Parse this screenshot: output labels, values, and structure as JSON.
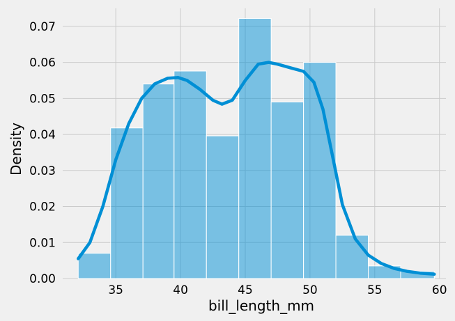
{
  "chart_data": {
    "type": "bar",
    "title": "",
    "xlabel": "bill_length_mm",
    "ylabel": "Density",
    "xlim": [
      30.9,
      60.5
    ],
    "ylim": [
      0,
      0.075
    ],
    "grid": true,
    "legend": "none",
    "x_ticks": [
      35,
      40,
      45,
      50,
      55,
      60
    ],
    "y_ticks": [
      0.0,
      0.01,
      0.02,
      0.03,
      0.04,
      0.05,
      0.06,
      0.07
    ],
    "x_tick_labels": [
      "35",
      "40",
      "45",
      "50",
      "55",
      "60"
    ],
    "y_tick_labels": [
      "0.00",
      "0.01",
      "0.02",
      "0.03",
      "0.04",
      "0.05",
      "0.06",
      "0.07"
    ],
    "bar_color": "#008fd5",
    "bar_opacity": 0.5,
    "line_color": "#008fd5",
    "bins": [
      {
        "x0": 32.1,
        "x1": 34.6,
        "density": 0.007
      },
      {
        "x0": 34.6,
        "x1": 37.1,
        "density": 0.0418
      },
      {
        "x0": 37.1,
        "x1": 39.5,
        "density": 0.054
      },
      {
        "x0": 39.5,
        "x1": 42.0,
        "density": 0.0576
      },
      {
        "x0": 42.0,
        "x1": 44.5,
        "density": 0.0396
      },
      {
        "x0": 44.5,
        "x1": 47.0,
        "density": 0.0722
      },
      {
        "x0": 47.0,
        "x1": 49.5,
        "density": 0.049
      },
      {
        "x0": 49.5,
        "x1": 52.0,
        "density": 0.06
      },
      {
        "x0": 52.0,
        "x1": 54.5,
        "density": 0.012
      },
      {
        "x0": 54.5,
        "x1": 57.0,
        "density": 0.0035
      },
      {
        "x0": 57.0,
        "x1": 59.6,
        "density": 0.002
      }
    ],
    "kde": {
      "x": [
        32.1,
        33.0,
        34.0,
        35.0,
        36.0,
        37.0,
        38.0,
        39.0,
        39.8,
        40.5,
        41.5,
        42.5,
        43.2,
        44.0,
        45.0,
        46.0,
        46.8,
        47.5,
        48.5,
        49.5,
        50.3,
        51.0,
        51.8,
        52.5,
        53.5,
        54.5,
        55.5,
        56.5,
        57.5,
        58.5,
        59.6
      ],
      "y": [
        0.0055,
        0.01,
        0.02,
        0.033,
        0.043,
        0.05,
        0.054,
        0.0556,
        0.0558,
        0.055,
        0.0525,
        0.0495,
        0.0484,
        0.0495,
        0.055,
        0.0595,
        0.06,
        0.0595,
        0.0585,
        0.0575,
        0.0545,
        0.047,
        0.033,
        0.0205,
        0.011,
        0.0065,
        0.0042,
        0.0028,
        0.002,
        0.0015,
        0.0012
      ]
    }
  }
}
